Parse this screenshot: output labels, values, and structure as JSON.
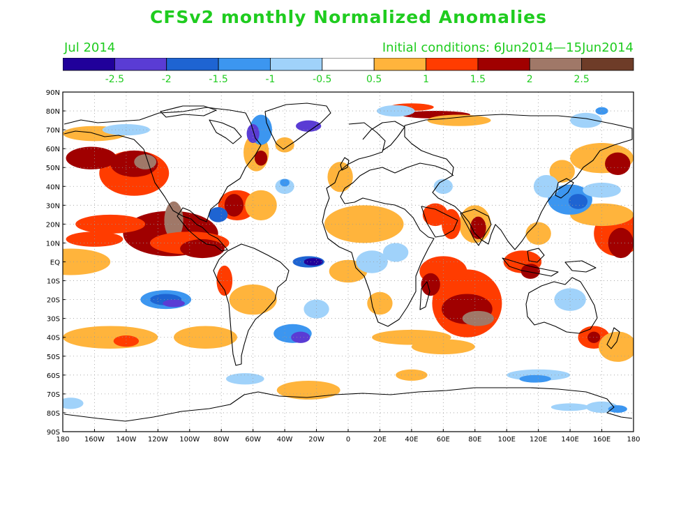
{
  "title": "CFSv2 monthly Normalized Anomalies",
  "valid_month": "Jul 2014",
  "initial_conditions": "Initial conditions: 6Jun2014—15Jun2014",
  "colors": {
    "title_text": "#1fcc1f",
    "land_outline": "#000000",
    "grid": "#9a9a9a"
  },
  "colorbar": {
    "colors": [
      "#20009a",
      "#5a3cd4",
      "#1e64d2",
      "#3c96f0",
      "#a0d2fa",
      "#ffffff",
      "#ffb43c",
      "#ff3c00",
      "#a00000",
      "#a07868",
      "#6e3c28"
    ],
    "labels": [
      "-2.5",
      "-2",
      "-1.5",
      "-1",
      "-0.5",
      "0.5",
      "1",
      "1.5",
      "2",
      "2.5"
    ]
  },
  "axes": {
    "lat_labels": [
      "90N",
      "80N",
      "70N",
      "60N",
      "50N",
      "40N",
      "30N",
      "20N",
      "10N",
      "EQ",
      "10S",
      "20S",
      "30S",
      "40S",
      "50S",
      "60S",
      "70S",
      "80S",
      "90S"
    ],
    "lon_labels": [
      "180",
      "160W",
      "140W",
      "120W",
      "100W",
      "80W",
      "60W",
      "40W",
      "20W",
      "0",
      "20E",
      "40E",
      "60E",
      "80E",
      "100E",
      "120E",
      "140E",
      "160E",
      "180"
    ],
    "grid": true
  },
  "anomaly_regions": [
    {
      "lon": -135,
      "lat": 47,
      "rx": 22,
      "ry": 12,
      "level": 1
    },
    {
      "lon": -135,
      "lat": 52,
      "rx": 15,
      "ry": 7,
      "level": 2
    },
    {
      "lon": -128,
      "lat": 53,
      "rx": 7,
      "ry": 4,
      "level": 3
    },
    {
      "lon": -162,
      "lat": 55,
      "rx": 16,
      "ry": 6,
      "level": 2
    },
    {
      "lon": -112,
      "lat": 15,
      "rx": 30,
      "ry": 12,
      "level": 2
    },
    {
      "lon": -110,
      "lat": 22,
      "rx": 6,
      "ry": 10,
      "level": 3
    },
    {
      "lon": -100,
      "lat": 10,
      "rx": 25,
      "ry": 6,
      "level": 1
    },
    {
      "lon": -92,
      "lat": 7,
      "rx": 14,
      "ry": 5,
      "level": 2
    },
    {
      "lon": -150,
      "lat": 20,
      "rx": 22,
      "ry": 5,
      "level": 1
    },
    {
      "lon": -160,
      "lat": 12,
      "rx": 18,
      "ry": 4,
      "level": 1
    },
    {
      "lon": -70,
      "lat": 30,
      "rx": 12,
      "ry": 8,
      "level": 1
    },
    {
      "lon": -72,
      "lat": 30,
      "rx": 6,
      "ry": 6,
      "level": 2
    },
    {
      "lon": -55,
      "lat": 30,
      "rx": 10,
      "ry": 8,
      "level": 0
    },
    {
      "lon": -58,
      "lat": 58,
      "rx": 8,
      "ry": 10,
      "level": 0
    },
    {
      "lon": -55,
      "lat": 55,
      "rx": 4,
      "ry": 4,
      "level": 2
    },
    {
      "lon": -40,
      "lat": 62,
      "rx": 6,
      "ry": 4,
      "level": 0
    },
    {
      "lon": -5,
      "lat": 45,
      "rx": 8,
      "ry": 8,
      "level": 0
    },
    {
      "lon": 10,
      "lat": 20,
      "rx": 25,
      "ry": 10,
      "level": 0
    },
    {
      "lon": 0,
      "lat": -5,
      "rx": 12,
      "ry": 6,
      "level": 0
    },
    {
      "lon": 20,
      "lat": -22,
      "rx": 8,
      "ry": 6,
      "level": 0
    },
    {
      "lon": 55,
      "lat": 78,
      "rx": 22,
      "ry": 2,
      "level": 2
    },
    {
      "lon": 40,
      "lat": 82,
      "rx": 14,
      "ry": 2,
      "level": 1
    },
    {
      "lon": 70,
      "lat": 75,
      "rx": 20,
      "ry": 3,
      "level": 0
    },
    {
      "lon": 75,
      "lat": -22,
      "rx": 22,
      "ry": 18,
      "level": 1
    },
    {
      "lon": 75,
      "lat": -25,
      "rx": 16,
      "ry": 8,
      "level": 2
    },
    {
      "lon": 82,
      "lat": -30,
      "rx": 10,
      "ry": 4,
      "level": 3
    },
    {
      "lon": 60,
      "lat": -5,
      "rx": 15,
      "ry": 8,
      "level": 1
    },
    {
      "lon": 52,
      "lat": -12,
      "rx": 6,
      "ry": 6,
      "level": 2
    },
    {
      "lon": 80,
      "lat": 20,
      "rx": 10,
      "ry": 10,
      "level": 0
    },
    {
      "lon": 82,
      "lat": 18,
      "rx": 5,
      "ry": 6,
      "level": 2
    },
    {
      "lon": 65,
      "lat": 20,
      "rx": 6,
      "ry": 8,
      "level": 1
    },
    {
      "lon": 55,
      "lat": 25,
      "rx": 8,
      "ry": 6,
      "level": 1
    },
    {
      "lon": 110,
      "lat": 0,
      "rx": 12,
      "ry": 6,
      "level": 1
    },
    {
      "lon": 115,
      "lat": -5,
      "rx": 6,
      "ry": 4,
      "level": 2
    },
    {
      "lon": 120,
      "lat": 15,
      "rx": 8,
      "ry": 6,
      "level": 0
    },
    {
      "lon": 170,
      "lat": 15,
      "rx": 15,
      "ry": 12,
      "level": 1
    },
    {
      "lon": 172,
      "lat": 10,
      "rx": 8,
      "ry": 8,
      "level": 2
    },
    {
      "lon": 160,
      "lat": 25,
      "rx": 20,
      "ry": 6,
      "level": 0
    },
    {
      "lon": 160,
      "lat": 55,
      "rx": 20,
      "ry": 8,
      "level": 0
    },
    {
      "lon": 170,
      "lat": 52,
      "rx": 8,
      "ry": 6,
      "level": 2
    },
    {
      "lon": 135,
      "lat": 48,
      "rx": 8,
      "ry": 6,
      "level": 0
    },
    {
      "lon": 155,
      "lat": -40,
      "rx": 10,
      "ry": 6,
      "level": 1
    },
    {
      "lon": 155,
      "lat": -40,
      "rx": 4,
      "ry": 3,
      "level": 2
    },
    {
      "lon": 170,
      "lat": -45,
      "rx": 12,
      "ry": 8,
      "level": 0
    },
    {
      "lon": -150,
      "lat": -40,
      "rx": 30,
      "ry": 6,
      "level": 0
    },
    {
      "lon": -140,
      "lat": -42,
      "rx": 8,
      "ry": 3,
      "level": 1
    },
    {
      "lon": -90,
      "lat": -40,
      "rx": 20,
      "ry": 6,
      "level": 0
    },
    {
      "lon": -60,
      "lat": -20,
      "rx": 15,
      "ry": 8,
      "level": 0
    },
    {
      "lon": -78,
      "lat": -10,
      "rx": 5,
      "ry": 8,
      "level": 1
    },
    {
      "lon": 40,
      "lat": -40,
      "rx": 25,
      "ry": 4,
      "level": 0
    },
    {
      "lon": -25,
      "lat": -68,
      "rx": 20,
      "ry": 5,
      "level": 0
    },
    {
      "lon": 40,
      "lat": -60,
      "rx": 10,
      "ry": 3,
      "level": 0
    },
    {
      "lon": -175,
      "lat": 0,
      "rx": 25,
      "ry": 7,
      "level": 0
    },
    {
      "lon": -160,
      "lat": 68,
      "rx": 20,
      "ry": 4,
      "level": 0
    },
    {
      "lon": 60,
      "lat": -45,
      "rx": 20,
      "ry": 4,
      "level": 0
    },
    {
      "lon": -115,
      "lat": -20,
      "rx": 16,
      "ry": 5,
      "level": -2
    },
    {
      "lon": -115,
      "lat": -20,
      "rx": 10,
      "ry": 3,
      "level": -3
    },
    {
      "lon": -110,
      "lat": -22,
      "rx": 7,
      "ry": 2,
      "level": -4
    },
    {
      "lon": -35,
      "lat": -38,
      "rx": 12,
      "ry": 5,
      "level": -2
    },
    {
      "lon": -30,
      "lat": -40,
      "rx": 6,
      "ry": 3,
      "level": -4
    },
    {
      "lon": -25,
      "lat": 0,
      "rx": 10,
      "ry": 3,
      "level": -3
    },
    {
      "lon": -22,
      "lat": 0,
      "rx": 6,
      "ry": 2,
      "level": -5
    },
    {
      "lon": -55,
      "lat": 70,
      "rx": 7,
      "ry": 8,
      "level": -2
    },
    {
      "lon": -60,
      "lat": 68,
      "rx": 4,
      "ry": 5,
      "level": -4
    },
    {
      "lon": -25,
      "lat": 72,
      "rx": 8,
      "ry": 3,
      "level": -4
    },
    {
      "lon": -82,
      "lat": 25,
      "rx": 6,
      "ry": 4,
      "level": -3
    },
    {
      "lon": 140,
      "lat": 33,
      "rx": 14,
      "ry": 8,
      "level": -2
    },
    {
      "lon": 145,
      "lat": 32,
      "rx": 6,
      "ry": 4,
      "level": -3
    },
    {
      "lon": 125,
      "lat": 40,
      "rx": 8,
      "ry": 6,
      "level": -1
    },
    {
      "lon": 160,
      "lat": 38,
      "rx": 12,
      "ry": 4,
      "level": -1
    },
    {
      "lon": 15,
      "lat": 0,
      "rx": 10,
      "ry": 6,
      "level": -1
    },
    {
      "lon": 30,
      "lat": 5,
      "rx": 8,
      "ry": 5,
      "level": -1
    },
    {
      "lon": 120,
      "lat": -60,
      "rx": 20,
      "ry": 3,
      "level": -1
    },
    {
      "lon": 118,
      "lat": -62,
      "rx": 10,
      "ry": 2,
      "level": -2
    },
    {
      "lon": 140,
      "lat": -20,
      "rx": 10,
      "ry": 6,
      "level": -1
    },
    {
      "lon": 60,
      "lat": 40,
      "rx": 6,
      "ry": 4,
      "level": -1
    },
    {
      "lon": -20,
      "lat": -25,
      "rx": 8,
      "ry": 5,
      "level": -1
    },
    {
      "lon": 150,
      "lat": 75,
      "rx": 10,
      "ry": 4,
      "level": -1
    },
    {
      "lon": 160,
      "lat": 80,
      "rx": 4,
      "ry": 2,
      "level": -2
    },
    {
      "lon": -140,
      "lat": 70,
      "rx": 15,
      "ry": 3,
      "level": -1
    },
    {
      "lon": 160,
      "lat": -77,
      "rx": 10,
      "ry": 3,
      "level": -1
    },
    {
      "lon": 170,
      "lat": -78,
      "rx": 6,
      "ry": 2,
      "level": -2
    },
    {
      "lon": 30,
      "lat": 80,
      "rx": 12,
      "ry": 3,
      "level": -1
    },
    {
      "lon": 140,
      "lat": -77,
      "rx": 12,
      "ry": 2,
      "level": -1
    },
    {
      "lon": -65,
      "lat": -62,
      "rx": 12,
      "ry": 3,
      "level": -1
    },
    {
      "lon": -175,
      "lat": -75,
      "rx": 8,
      "ry": 3,
      "level": -1
    },
    {
      "lon": -40,
      "lat": 40,
      "rx": 6,
      "ry": 4,
      "level": -1
    },
    {
      "lon": -40,
      "lat": 42,
      "rx": 3,
      "ry": 2,
      "level": -2
    }
  ]
}
